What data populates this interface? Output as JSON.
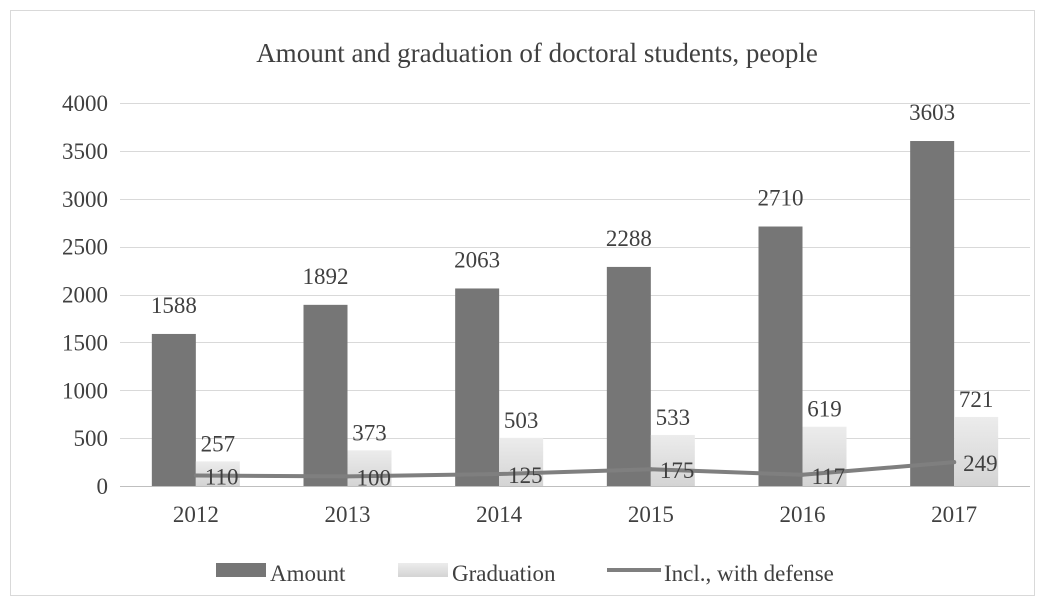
{
  "chart_data": {
    "type": "bar",
    "title": "Amount and graduation of doctoral students, people",
    "categories": [
      "2012",
      "2013",
      "2014",
      "2015",
      "2016",
      "2017"
    ],
    "ylim": [
      0,
      4000
    ],
    "yticks": [
      0,
      500,
      1000,
      1500,
      2000,
      2500,
      3000,
      3500,
      4000
    ],
    "grid": true,
    "legend_position": "bottom",
    "series": [
      {
        "name": "Amount",
        "kind": "bar",
        "color": "#767676",
        "values": [
          1588,
          1892,
          2063,
          2288,
          2710,
          3603
        ]
      },
      {
        "name": "Graduation",
        "kind": "bar",
        "color": "#e0e0e0",
        "values": [
          257,
          373,
          503,
          533,
          619,
          721
        ]
      },
      {
        "name": "Incl., with defense",
        "kind": "line",
        "color": "#7f7f7f",
        "values": [
          110,
          100,
          125,
          175,
          117,
          249
        ]
      }
    ]
  }
}
